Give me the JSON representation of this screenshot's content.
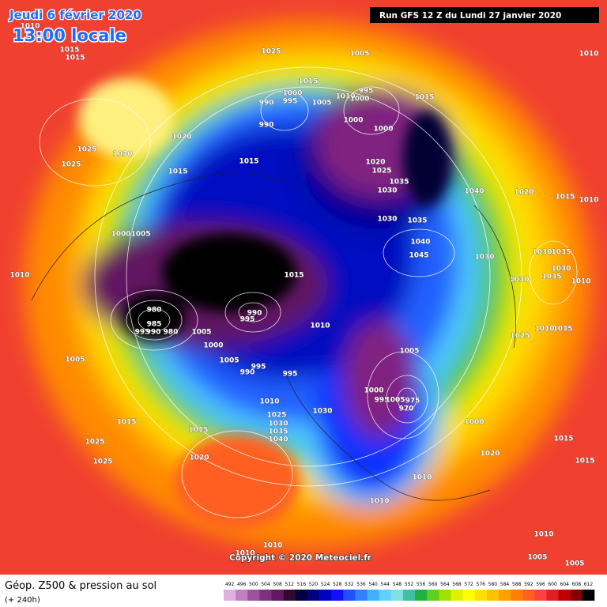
{
  "header": {
    "date": "Jeudi 6 février 2020",
    "time": "13:00 locale",
    "run": "Run GFS 12 Z du Lundi 27 janvier 2020"
  },
  "copyright": "Copyright © 2020 Meteociel.fr",
  "footer": {
    "title": "Géop. Z500 & pression au sol",
    "lead": "(+ 240h)"
  },
  "legend": {
    "values": [
      492,
      496,
      500,
      504,
      508,
      512,
      516,
      520,
      524,
      528,
      532,
      536,
      540,
      544,
      548,
      552,
      556,
      560,
      564,
      568,
      572,
      576,
      580,
      584,
      588,
      592,
      596,
      600,
      604,
      608,
      612
    ],
    "colors": [
      "#e0b0e0",
      "#c080c0",
      "#a050a0",
      "#803080",
      "#601860",
      "#300830",
      "#000040",
      "#000080",
      "#0000c0",
      "#1010ff",
      "#2050ff",
      "#3080ff",
      "#40b0ff",
      "#60d0ff",
      "#80e0e0",
      "#40c0a0",
      "#20b040",
      "#60d020",
      "#a0e000",
      "#e0f000",
      "#ffff00",
      "#ffe000",
      "#ffc000",
      "#ffa000",
      "#ff8000",
      "#ff6020",
      "#ff4040",
      "#e02020",
      "#c00000",
      "#800000",
      "#000000"
    ]
  },
  "isobar_labels": [
    1010,
    1015,
    1015,
    1025,
    1005,
    1010,
    1015,
    1000,
    995,
    990,
    1005,
    1010,
    995,
    1000,
    1015,
    1000,
    1000,
    990,
    1020,
    1025,
    1030,
    1025,
    1015,
    1015,
    1020,
    1025,
    1035,
    1030,
    1040,
    1020,
    1015,
    1010,
    1030,
    1035,
    1040,
    1045,
    1030,
    1030,
    1035,
    1000,
    1005,
    1015,
    1010,
    1030,
    1030,
    1035,
    1010,
    980,
    985,
    995,
    990,
    980,
    995,
    990,
    1005,
    1010,
    1000,
    1005,
    1005,
    995,
    990,
    995,
    1025,
    1035,
    1005,
    1010,
    1000,
    995,
    975,
    970,
    1005,
    1010,
    1030,
    1025,
    1030,
    1035,
    1040,
    1015,
    1015,
    1000,
    1025,
    1025,
    1020,
    1020,
    1015,
    1015,
    1010,
    1010,
    1010,
    1005,
    1005,
    1010,
    1010
  ]
}
